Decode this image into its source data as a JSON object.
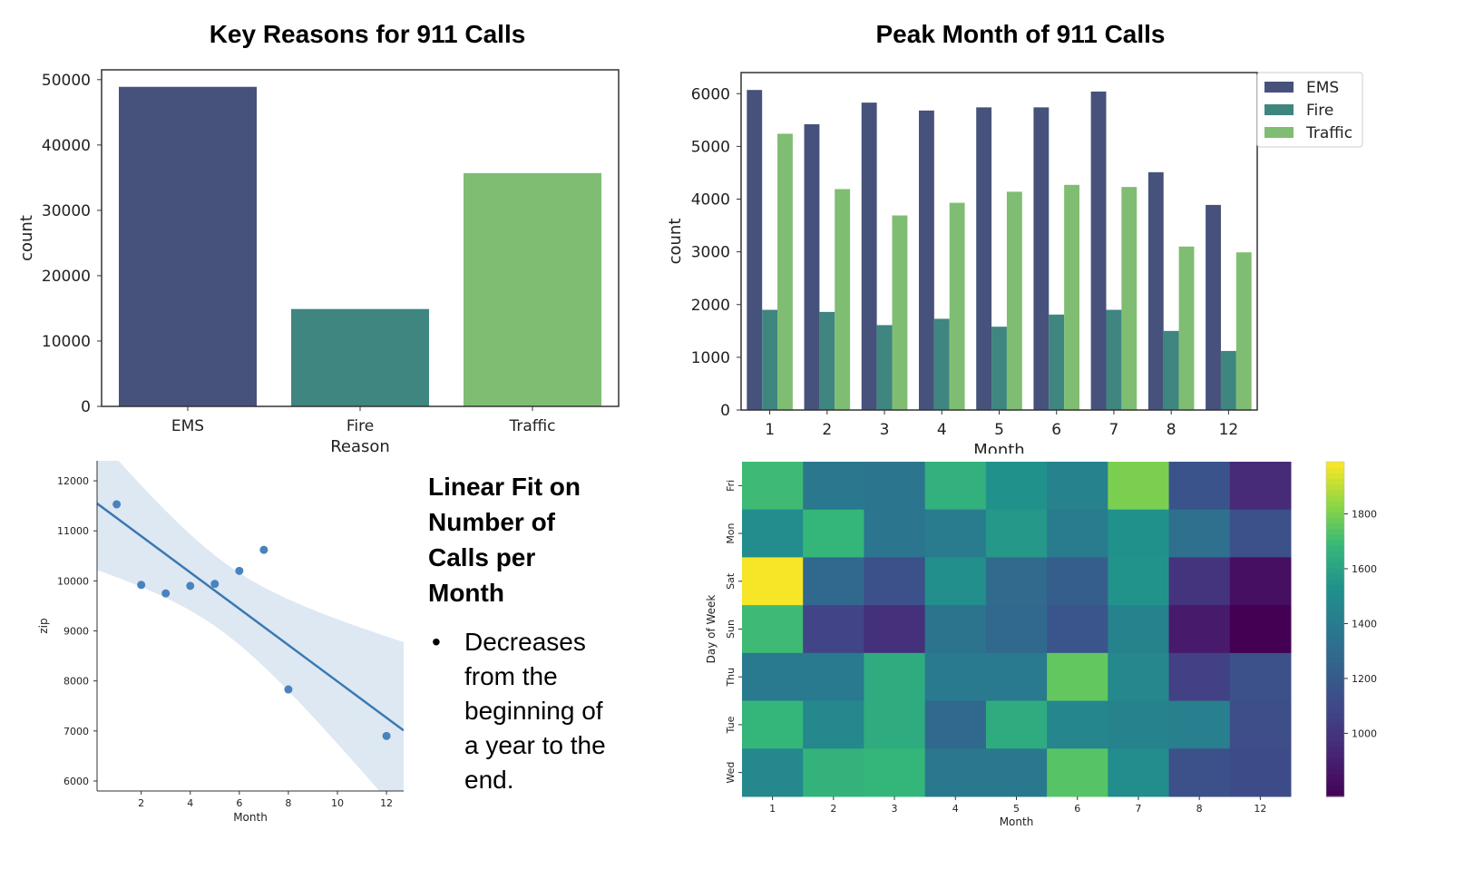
{
  "colors": {
    "EMS": "#46527b",
    "Fire": "#3f8580",
    "Traffic": "#7fbd72",
    "regression": "#3b78b2",
    "band": "#d5e2f0",
    "points": "#4a82bd"
  },
  "chart_data": [
    {
      "id": "reasons",
      "type": "bar",
      "title": "Key Reasons for 911 Calls",
      "xlabel": "Reason",
      "ylabel": "count",
      "categories": [
        "EMS",
        "Fire",
        "Traffic"
      ],
      "values": [
        48900,
        14900,
        35700
      ],
      "ylim": [
        0,
        51500
      ],
      "yticks": [
        0,
        10000,
        20000,
        30000,
        40000,
        50000
      ]
    },
    {
      "id": "months",
      "type": "bar",
      "title": "Peak Month of 911 Calls",
      "xlabel": "Month",
      "ylabel": "count",
      "categories": [
        "1",
        "2",
        "3",
        "4",
        "5",
        "6",
        "7",
        "8",
        "12"
      ],
      "series": [
        {
          "name": "EMS",
          "values": [
            6070,
            5420,
            5830,
            5680,
            5740,
            5740,
            6040,
            4510,
            3890
          ]
        },
        {
          "name": "Fire",
          "values": [
            1900,
            1860,
            1610,
            1730,
            1580,
            1810,
            1900,
            1500,
            1120
          ]
        },
        {
          "name": "Traffic",
          "values": [
            5240,
            4190,
            3690,
            3930,
            4140,
            4270,
            4230,
            3100,
            2990
          ]
        }
      ],
      "ylim": [
        0,
        6400
      ],
      "yticks": [
        0,
        1000,
        2000,
        3000,
        4000,
        5000,
        6000
      ],
      "legend": "top-right outside"
    },
    {
      "id": "linfit",
      "type": "scatter",
      "xlabel": "Month",
      "ylabel": "zip",
      "points": [
        {
          "x": 1,
          "y": 11530
        },
        {
          "x": 2,
          "y": 9920
        },
        {
          "x": 3,
          "y": 9750
        },
        {
          "x": 4,
          "y": 9900
        },
        {
          "x": 5,
          "y": 9940
        },
        {
          "x": 6,
          "y": 10200
        },
        {
          "x": 7,
          "y": 10620
        },
        {
          "x": 8,
          "y": 7830
        },
        {
          "x": 12,
          "y": 6900
        }
      ],
      "regression": {
        "intercept": 11620,
        "slope": -363
      },
      "xlim": [
        0.2,
        12.7
      ],
      "ylim": [
        5800,
        12400
      ],
      "xticks": [
        2,
        4,
        6,
        8,
        10,
        12
      ],
      "yticks": [
        6000,
        7000,
        8000,
        9000,
        10000,
        11000,
        12000
      ]
    },
    {
      "id": "heatmap",
      "type": "heatmap",
      "xlabel": "Month",
      "ylabel": "Day of Week",
      "x": [
        "1",
        "2",
        "3",
        "4",
        "5",
        "6",
        "7",
        "8",
        "12"
      ],
      "y": [
        "Fri",
        "Mon",
        "Sat",
        "Sun",
        "Thu",
        "Tue",
        "Wed"
      ],
      "values": [
        [
          1700,
          1380,
          1360,
          1660,
          1530,
          1440,
          1800,
          1160,
          950
        ],
        [
          1510,
          1680,
          1360,
          1400,
          1560,
          1400,
          1530,
          1330,
          1140
        ],
        [
          1980,
          1290,
          1140,
          1520,
          1300,
          1220,
          1540,
          1000,
          830
        ],
        [
          1700,
          1080,
          980,
          1350,
          1290,
          1170,
          1440,
          880,
          770
        ],
        [
          1390,
          1390,
          1640,
          1390,
          1390,
          1760,
          1480,
          1060,
          1140
        ],
        [
          1680,
          1480,
          1640,
          1280,
          1640,
          1470,
          1440,
          1420,
          1130
        ],
        [
          1480,
          1670,
          1680,
          1380,
          1380,
          1740,
          1510,
          1140,
          1120
        ]
      ],
      "colorbar": {
        "min": 770,
        "max": 1990,
        "ticks": [
          1000,
          1200,
          1400,
          1600,
          1800
        ]
      }
    }
  ],
  "annotation": {
    "title_lines": [
      "Linear Fit on",
      "Number of",
      "Calls per",
      "Month"
    ],
    "bullet_marker": "•",
    "bullet_lines": [
      "Decreases",
      "from the",
      "beginning of",
      "a year to the",
      "end."
    ]
  }
}
